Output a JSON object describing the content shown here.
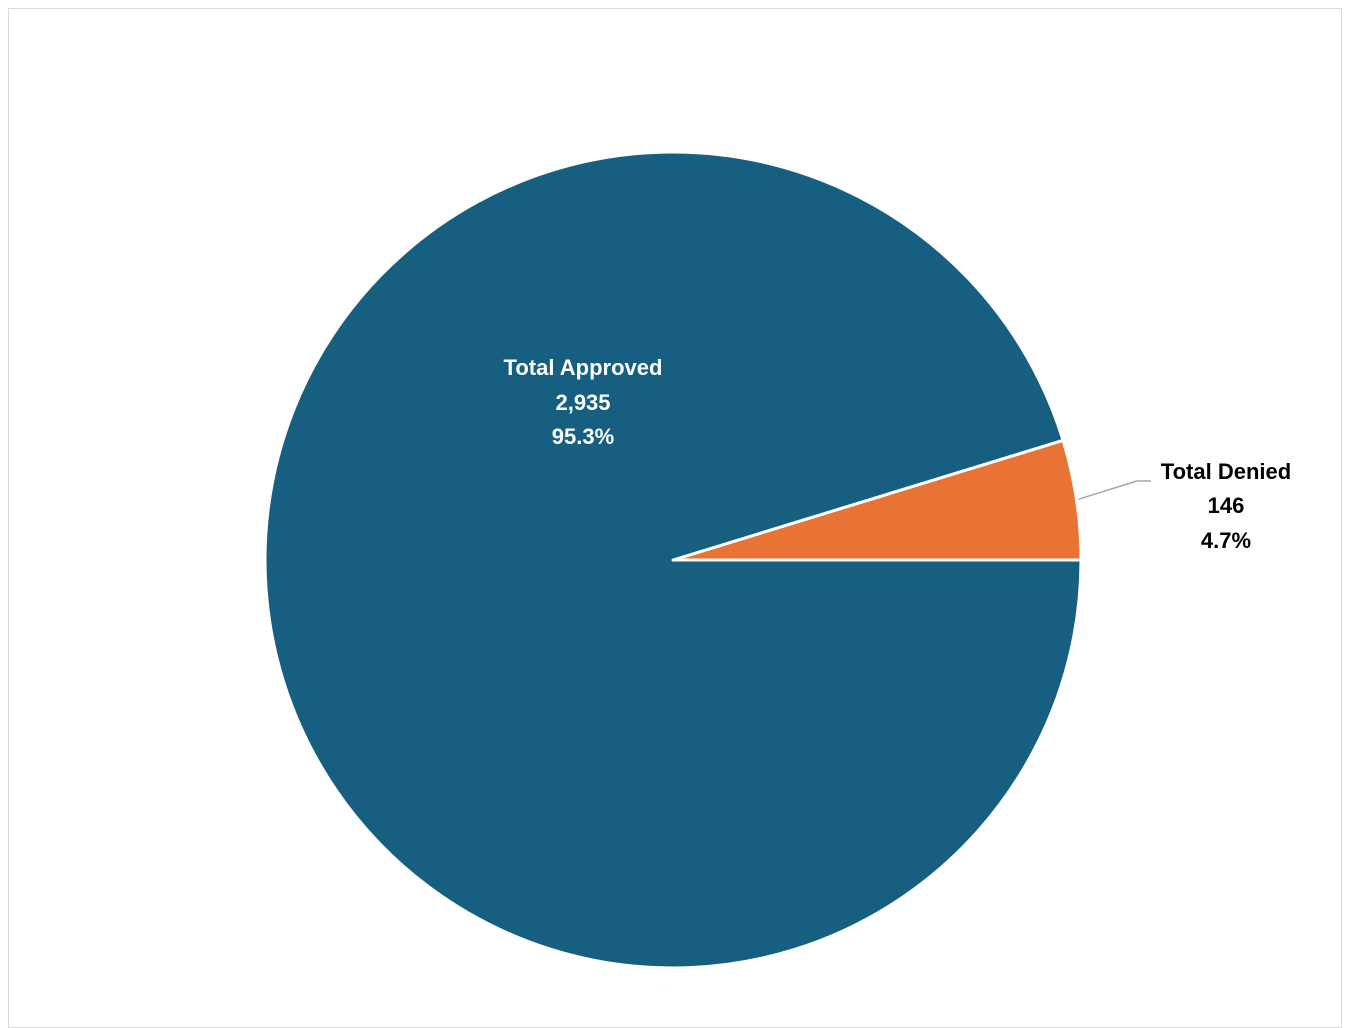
{
  "chart_data": {
    "type": "pie",
    "categories": [
      "Total Approved",
      "Total Denied"
    ],
    "values": [
      2935,
      146
    ],
    "percent_labels": [
      "95.3%",
      "4.7%"
    ],
    "value_labels": [
      "2,935",
      "146"
    ],
    "colors": [
      "#175f81",
      "#e97334"
    ],
    "slice_border_color": "#ffffff",
    "start_angle_deg": 0,
    "direction": "counterclockwise",
    "legend": "none"
  }
}
